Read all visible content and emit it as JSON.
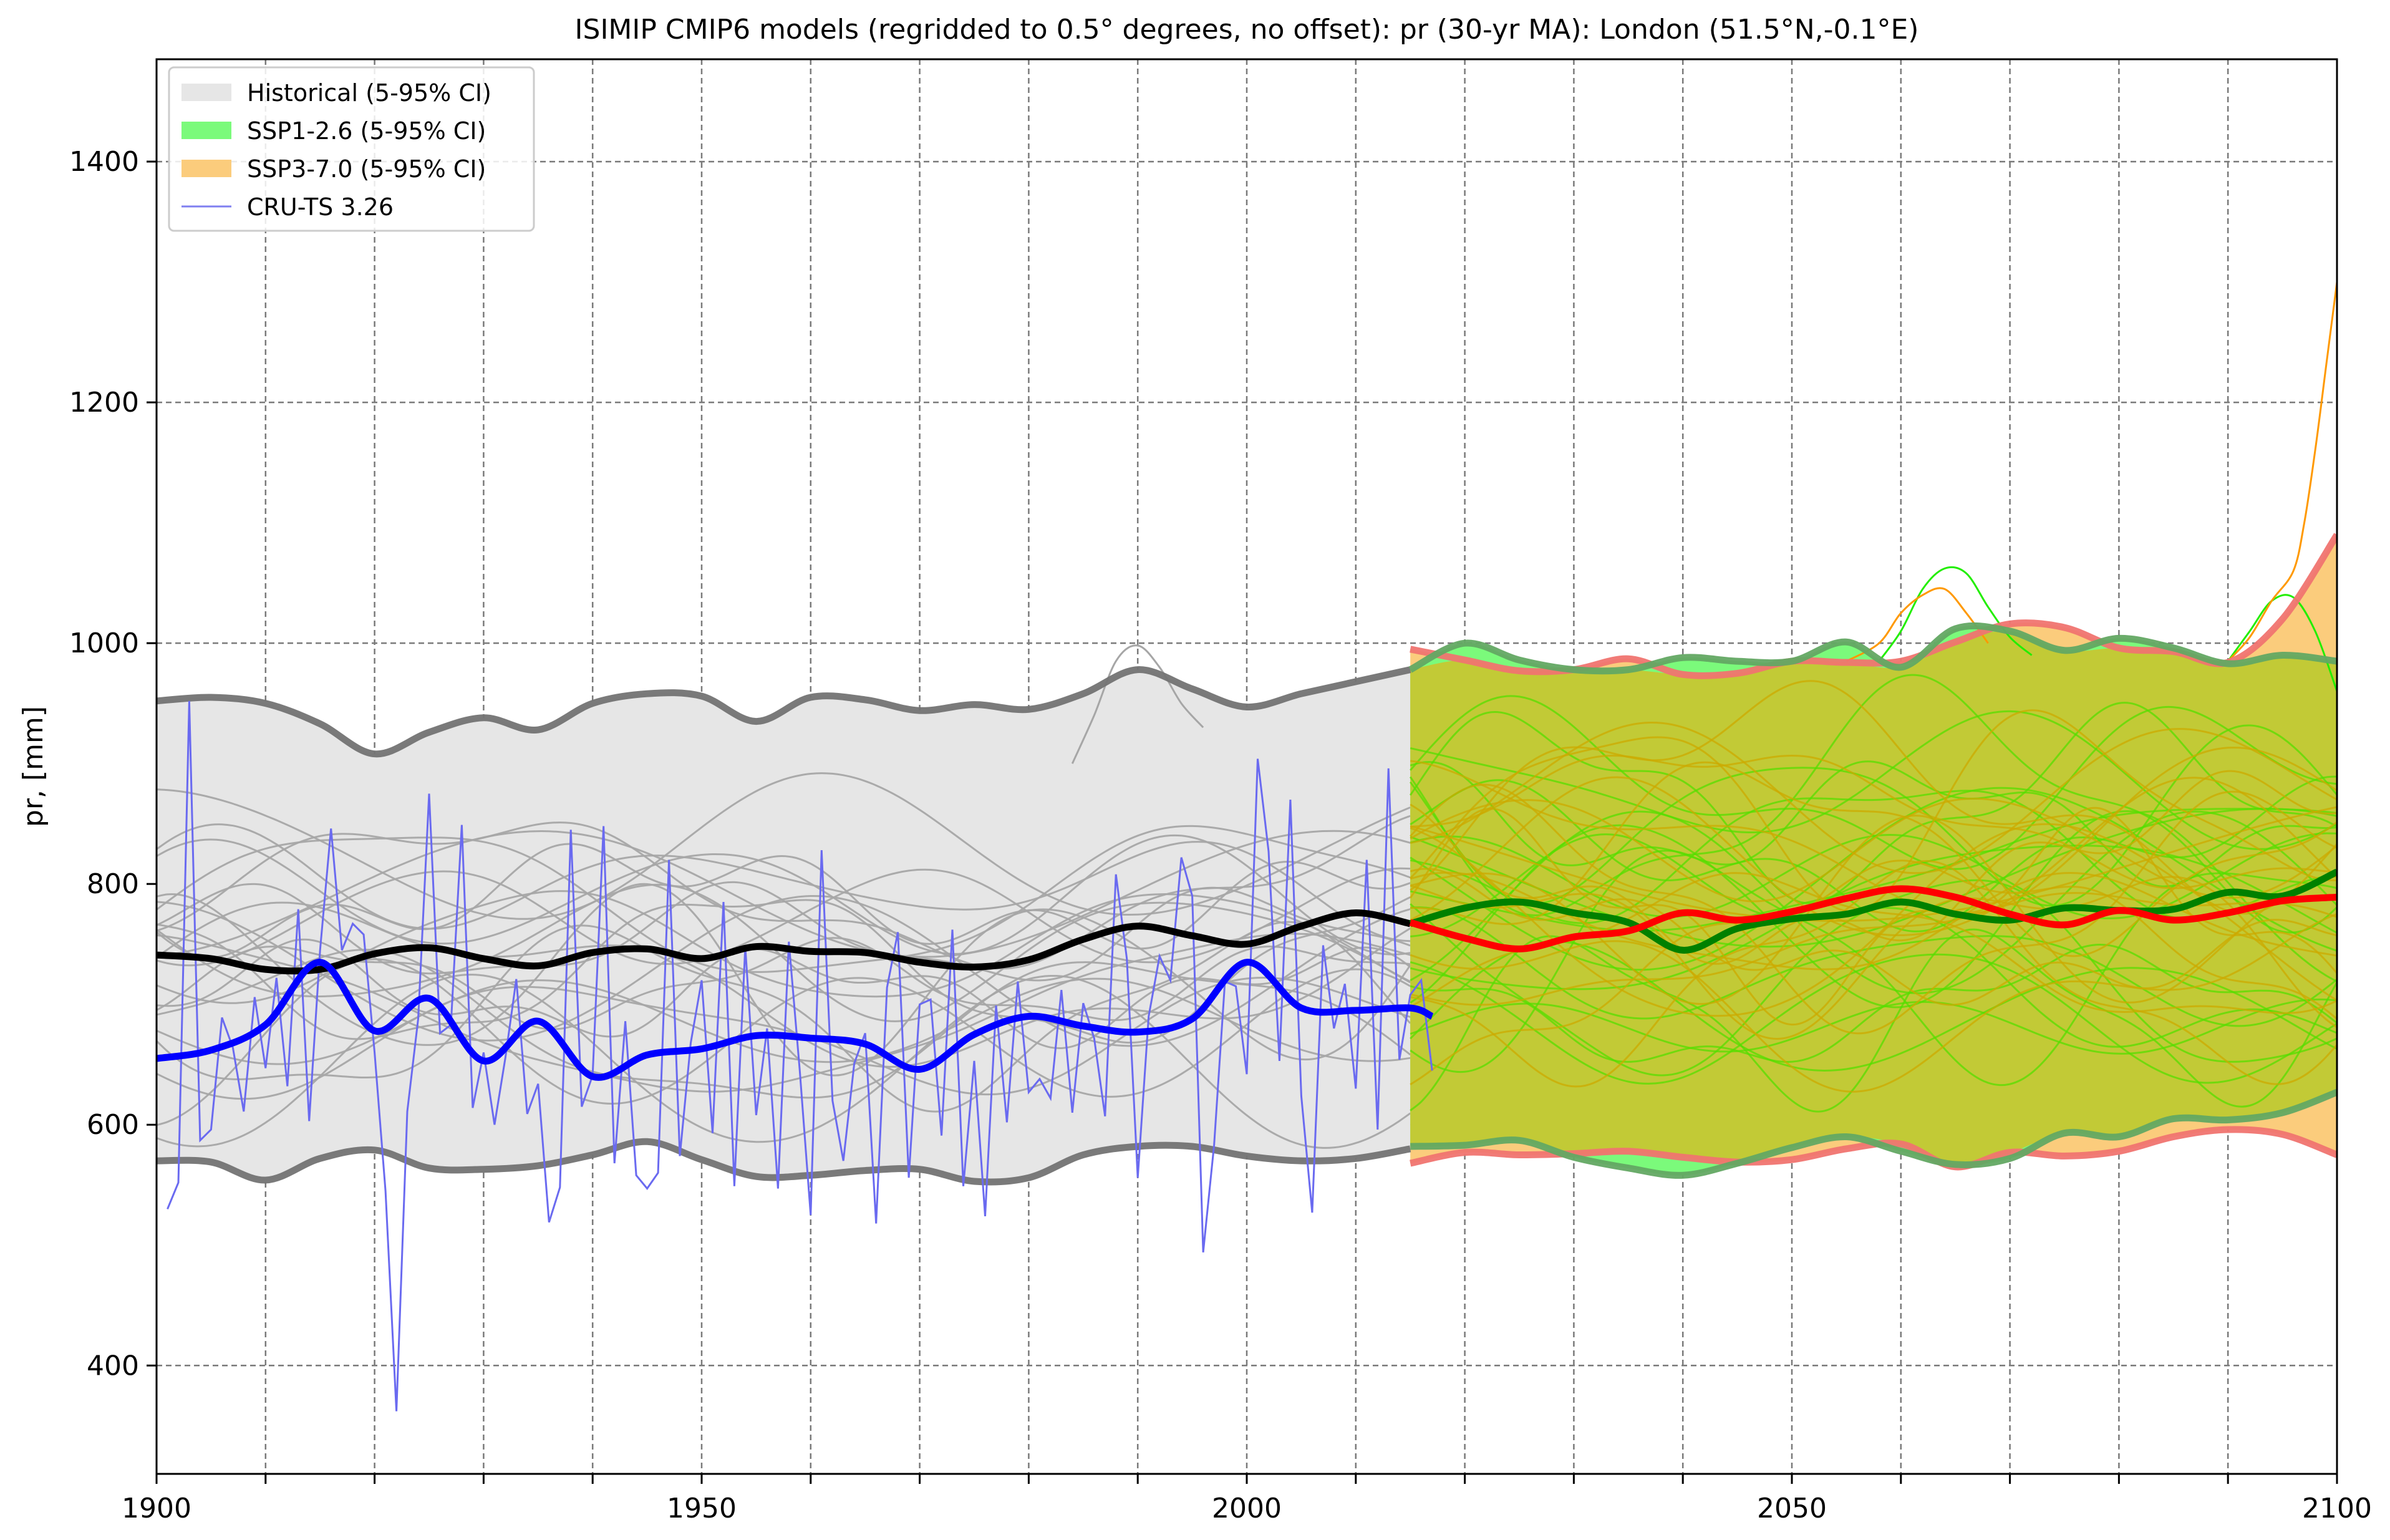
{
  "chart_data": {
    "type": "line",
    "title": "ISIMIP CMIP6 models (regridded to 0.5° degrees, no offset): pr (30-yr MA): London (51.5°N,-0.1°E)",
    "xlabel": "",
    "ylabel": "pr, [mm]",
    "xlim": [
      1900,
      2100
    ],
    "ylim": [
      310,
      1485
    ],
    "x_ticks": [
      1900,
      1950,
      2000,
      2050,
      2100
    ],
    "x_tick_labels": [
      "1900",
      "1950",
      "2000",
      "2050",
      "2100"
    ],
    "x_minor_step": 10,
    "y_ticks": [
      400,
      600,
      800,
      1000,
      1200,
      1400
    ],
    "y_tick_labels": [
      "400",
      "600",
      "800",
      "1000",
      "1200",
      "1400"
    ],
    "grid": true,
    "legend_position": "top-left",
    "legend": [
      {
        "label": "Historical (5-95% CI)",
        "kind": "patch",
        "color": "#e6e6e6"
      },
      {
        "label": "SSP1-2.6 (5-95% CI)",
        "kind": "patch",
        "color": "#7bfa7b"
      },
      {
        "label": "SSP3-7.0 (5-95% CI)",
        "kind": "patch",
        "color": "#fbcc7c"
      },
      {
        "label": "CRU-TS 3.26",
        "kind": "line",
        "color": "#7f7ff0"
      }
    ],
    "colors": {
      "historical_band": "#e6e6e6",
      "historical_edge": "#737373",
      "historical_member": "#a6a6a6",
      "historical_mean": "#000000",
      "ssp126_band": "#7bfa7b",
      "ssp126_edge": "#63a863",
      "ssp126_member": "#55dd00",
      "ssp126_mean": "#008000",
      "ssp370_band": "#fbcc7c",
      "ssp370_edge": "#f07470",
      "ssp370_member": "#ccaa00",
      "ssp370_mean": "#ff0000",
      "overlap_band": "#c2ca36",
      "cru_raw": "#6a6af0",
      "cru_smooth": "#0000ff"
    },
    "series": [
      {
        "key": "historical_ci",
        "kind": "band",
        "x": [
          1900,
          1905,
          1910,
          1915,
          1920,
          1925,
          1930,
          1935,
          1940,
          1945,
          1950,
          1955,
          1960,
          1965,
          1970,
          1975,
          1980,
          1985,
          1990,
          1995,
          2000,
          2005,
          2010,
          2015
        ],
        "lower": [
          570,
          569,
          554,
          572,
          579,
          564,
          563,
          566,
          575,
          586,
          571,
          557,
          558,
          562,
          563,
          553,
          556,
          575,
          582,
          582,
          574,
          570,
          572,
          580
        ],
        "upper": [
          952,
          955,
          950,
          933,
          908,
          926,
          938,
          928,
          950,
          958,
          956,
          935,
          955,
          953,
          944,
          949,
          945,
          958,
          978,
          962,
          947,
          958,
          968,
          978
        ]
      },
      {
        "key": "ssp126_ci",
        "kind": "band",
        "x": [
          2015,
          2020,
          2025,
          2030,
          2035,
          2040,
          2045,
          2050,
          2055,
          2060,
          2065,
          2070,
          2075,
          2080,
          2085,
          2090,
          2095,
          2100
        ],
        "lower": [
          582,
          583,
          587,
          573,
          564,
          558,
          568,
          581,
          590,
          578,
          567,
          572,
          593,
          590,
          605,
          604,
          610,
          627
        ],
        "upper": [
          978,
          1000,
          986,
          978,
          978,
          988,
          985,
          985,
          1001,
          980,
          1012,
          1010,
          994,
          1004,
          996,
          983,
          990,
          985
        ]
      },
      {
        "key": "ssp370_ci",
        "kind": "band",
        "x": [
          2015,
          2020,
          2025,
          2030,
          2035,
          2040,
          2045,
          2050,
          2055,
          2060,
          2065,
          2070,
          2075,
          2080,
          2085,
          2090,
          2095,
          2100
        ],
        "lower": [
          568,
          577,
          575,
          576,
          578,
          573,
          569,
          571,
          580,
          584,
          565,
          577,
          574,
          578,
          590,
          596,
          592,
          575
        ],
        "upper": [
          995,
          986,
          977,
          978,
          987,
          974,
          975,
          985,
          984,
          985,
          1001,
          1016,
          1013,
          996,
          993,
          984,
          1020,
          1090
        ]
      },
      {
        "key": "historical_mean",
        "kind": "line",
        "x": [
          1900,
          1905,
          1910,
          1915,
          1920,
          1925,
          1930,
          1935,
          1940,
          1945,
          1950,
          1955,
          1960,
          1965,
          1970,
          1975,
          1980,
          1985,
          1990,
          1995,
          2000,
          2005,
          2010,
          2015
        ],
        "y": [
          741,
          738,
          729,
          729,
          742,
          747,
          738,
          732,
          743,
          746,
          738,
          748,
          744,
          743,
          735,
          731,
          737,
          754,
          765,
          757,
          750,
          765,
          776,
          767
        ]
      },
      {
        "key": "ssp126_mean",
        "kind": "line",
        "x": [
          2015,
          2020,
          2025,
          2030,
          2035,
          2040,
          2045,
          2050,
          2055,
          2060,
          2065,
          2070,
          2075,
          2080,
          2085,
          2090,
          2095,
          2100
        ],
        "y": [
          767,
          780,
          785,
          776,
          768,
          745,
          763,
          771,
          775,
          785,
          775,
          770,
          780,
          778,
          779,
          793,
          790,
          810
        ]
      },
      {
        "key": "ssp370_mean",
        "kind": "line",
        "x": [
          2015,
          2020,
          2025,
          2030,
          2035,
          2040,
          2045,
          2050,
          2055,
          2060,
          2065,
          2070,
          2075,
          2080,
          2085,
          2090,
          2095,
          2100
        ],
        "y": [
          768,
          755,
          746,
          756,
          761,
          776,
          770,
          777,
          788,
          796,
          789,
          775,
          766,
          778,
          770,
          776,
          786,
          789
        ]
      },
      {
        "key": "cru_smooth",
        "kind": "line",
        "name": "CRU-TS 3.26",
        "x": [
          1900,
          1905,
          1910,
          1915,
          1920,
          1925,
          1930,
          1935,
          1940,
          1945,
          1950,
          1955,
          1960,
          1965,
          1970,
          1975,
          1980,
          1985,
          1990,
          1995,
          2000,
          2005,
          2010,
          2015,
          2017
        ],
        "y": [
          655,
          662,
          683,
          735,
          678,
          705,
          653,
          686,
          640,
          658,
          663,
          674,
          672,
          667,
          646,
          675,
          690,
          682,
          677,
          688,
          735,
          697,
          695,
          697,
          690
        ]
      },
      {
        "key": "cru_raw",
        "kind": "line",
        "name": "CRU-TS 3.26",
        "x": [
          1901,
          1902,
          1903,
          1904,
          1905,
          1906,
          1907,
          1908,
          1909,
          1910,
          1911,
          1912,
          1913,
          1914,
          1915,
          1916,
          1917,
          1918,
          1919,
          1920,
          1921,
          1922,
          1923,
          1924,
          1925,
          1926,
          1927,
          1928,
          1929,
          1930,
          1931,
          1932,
          1933,
          1934,
          1935,
          1936,
          1937,
          1938,
          1939,
          1940,
          1941,
          1942,
          1943,
          1944,
          1945,
          1946,
          1947,
          1948,
          1949,
          1950,
          1951,
          1952,
          1953,
          1954,
          1955,
          1956,
          1957,
          1958,
          1959,
          1960,
          1961,
          1962,
          1963,
          1964,
          1965,
          1966,
          1967,
          1968,
          1969,
          1970,
          1971,
          1972,
          1973,
          1974,
          1975,
          1976,
          1977,
          1978,
          1979,
          1980,
          1981,
          1982,
          1983,
          1984,
          1985,
          1986,
          1987,
          1988,
          1989,
          1990,
          1991,
          1992,
          1993,
          1994,
          1995,
          1996,
          1997,
          1998,
          1999,
          2000,
          2001,
          2002,
          2003,
          2004,
          2005,
          2006,
          2007,
          2008,
          2009,
          2010,
          2011,
          2012,
          2013,
          2014,
          2015,
          2016,
          2017
        ],
        "y": [
          530,
          552,
          952,
          587,
          596,
          689,
          664,
          611,
          706,
          647,
          722,
          632,
          779,
          603,
          745,
          846,
          745,
          767,
          758,
          660,
          545,
          362,
          611,
          688,
          875,
          676,
          683,
          849,
          614,
          660,
          600,
          656,
          721,
          609,
          634,
          519,
          548,
          845,
          615,
          641,
          848,
          568,
          686,
          558,
          547,
          560,
          820,
          574,
          668,
          720,
          593,
          785,
          549,
          748,
          608,
          680,
          547,
          752,
          645,
          525,
          828,
          620,
          570,
          651,
          676,
          518,
          714,
          760,
          556,
          700,
          704,
          591,
          762,
          549,
          653,
          524,
          699,
          602,
          719,
          627,
          638,
          622,
          712,
          610,
          701,
          672,
          607,
          808,
          738,
          556,
          690,
          740,
          720,
          822,
          790,
          494,
          583,
          719,
          715,
          642,
          904,
          827,
          653,
          870,
          624,
          527,
          749,
          680,
          717,
          630,
          820,
          596,
          896,
          654,
          708,
          720,
          645
        ]
      }
    ],
    "ensembles": [
      {
        "key": "historical_members",
        "x_start": 1900,
        "x_end": 2015,
        "count": 24,
        "center": 745,
        "spread": 100,
        "wiggle": 70,
        "seed": 11
      },
      {
        "key": "ssp126_members",
        "x_start": 2015,
        "x_end": 2100,
        "count": 24,
        "center": 780,
        "spread": 105,
        "wiggle": 90,
        "seed": 23
      },
      {
        "key": "ssp370_members",
        "x_start": 2015,
        "x_end": 2100,
        "count": 22,
        "center": 775,
        "spread": 100,
        "wiggle": 90,
        "seed": 47
      }
    ],
    "outliers": [
      {
        "key": "ssp126_outlier_a",
        "x": [
          2058,
          2060,
          2062,
          2064,
          2066,
          2068,
          2070,
          2072
        ],
        "y": [
          985,
          1010,
          1045,
          1062,
          1058,
          1030,
          1005,
          990
        ]
      },
      {
        "key": "ssp126_outlier_b",
        "x": [
          2090,
          2092,
          2094,
          2096,
          2098,
          2100
        ],
        "y": [
          985,
          1010,
          1035,
          1038,
          1010,
          960
        ]
      },
      {
        "key": "ssp370_outlier_a",
        "x": [
          2055,
          2058,
          2060,
          2062,
          2064,
          2066,
          2068
        ],
        "y": [
          985,
          1000,
          1025,
          1040,
          1045,
          1025,
          1000
        ]
      },
      {
        "key": "ssp370_outlier_b",
        "x": [
          2090,
          2092,
          2094,
          2096,
          2097,
          2098,
          2099,
          2100
        ],
        "y": [
          985,
          1005,
          1035,
          1060,
          1100,
          1160,
          1230,
          1300
        ]
      },
      {
        "key": "historical_outlier",
        "x": [
          1984,
          1986,
          1988,
          1990,
          1992,
          1994,
          1996
        ],
        "y": [
          900,
          940,
          985,
          998,
          980,
          950,
          930
        ]
      }
    ]
  }
}
